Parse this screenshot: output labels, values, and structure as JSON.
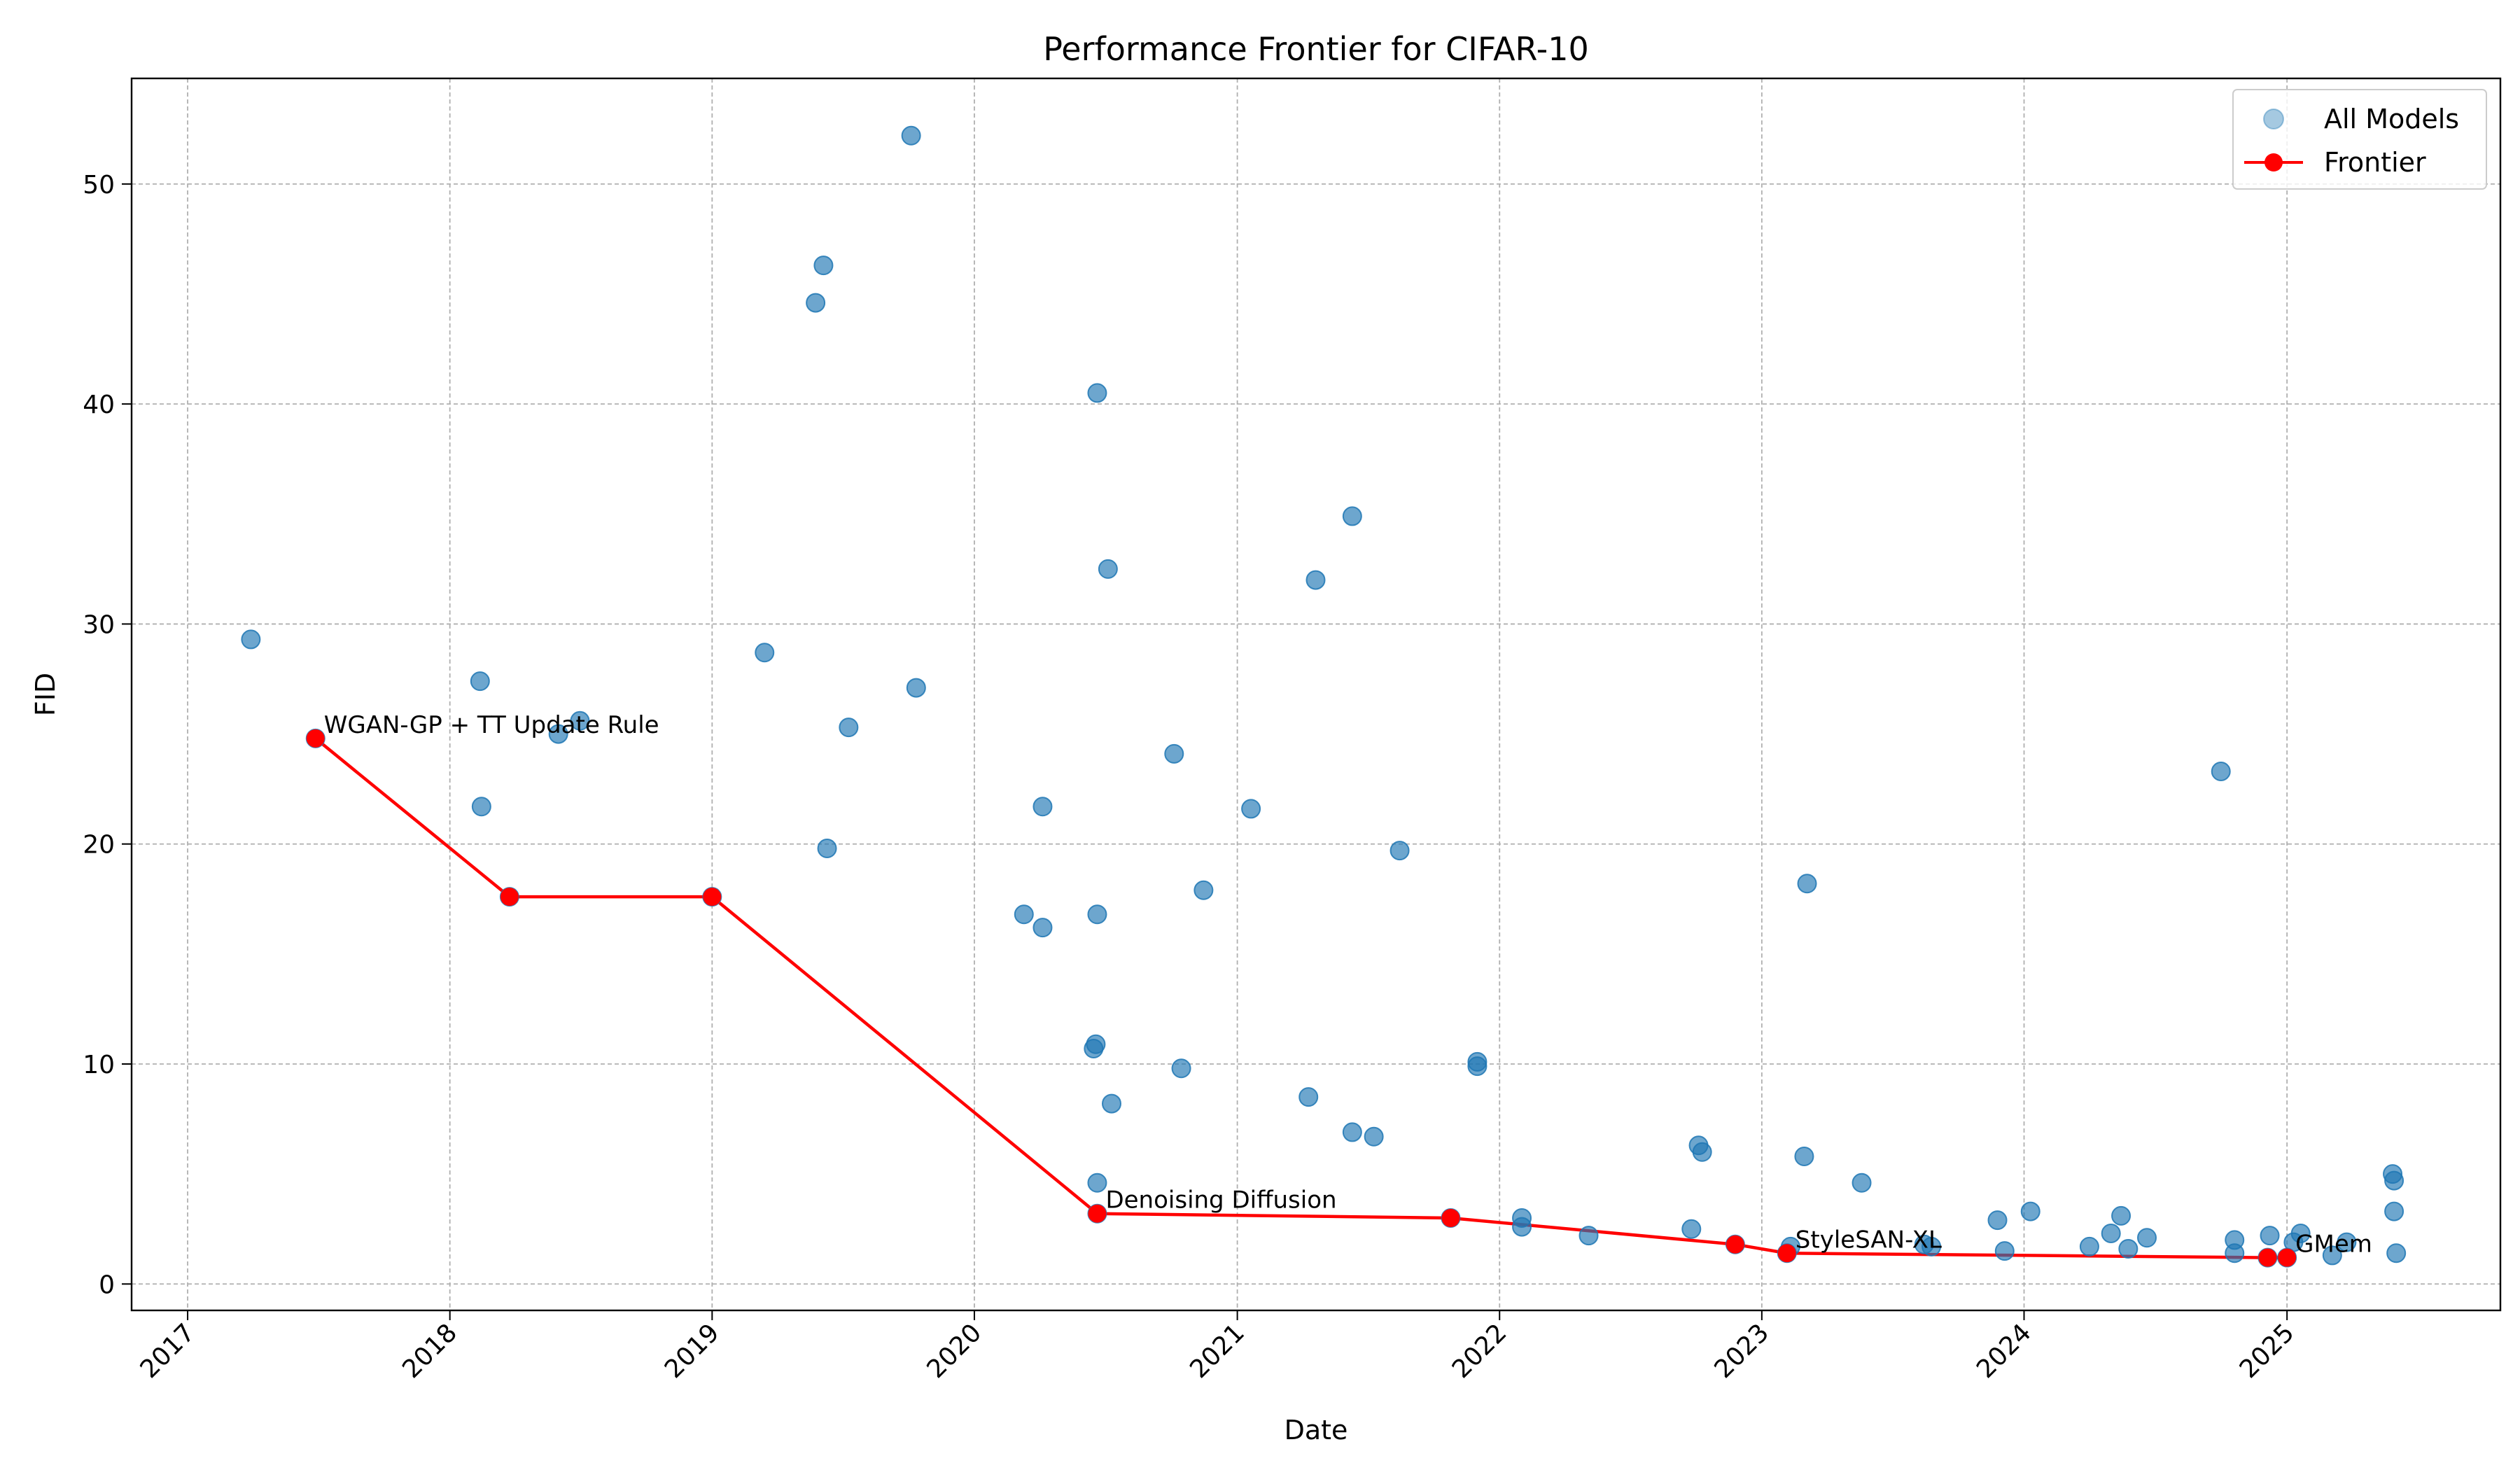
{
  "chart_data": {
    "type": "scatter",
    "title": "Performance Frontier for CIFAR-10",
    "xlabel": "Date",
    "ylabel": "FID",
    "xlim": [
      "2016-10-15",
      "2025-10-25"
    ],
    "ylim": [
      -1.2,
      54.8
    ],
    "x_tick_labels": [
      "2017",
      "2018",
      "2019",
      "2020",
      "2021",
      "2022",
      "2023",
      "2024",
      "2025"
    ],
    "y_ticks": [
      0,
      10,
      20,
      30,
      40,
      50
    ],
    "grid": true,
    "legend_position": "top-right",
    "colors": {
      "all_models": "#1f77b4",
      "frontier": "#ff0000"
    },
    "series": [
      {
        "name": "All Models",
        "kind": "scatter",
        "points": [
          [
            "2017-03-30",
            29.3
          ],
          [
            "2017-06-28",
            24.8
          ],
          [
            "2018-02-12",
            27.4
          ],
          [
            "2018-02-14",
            21.7
          ],
          [
            "2018-03-25",
            17.6
          ],
          [
            "2018-06-01",
            25.0
          ],
          [
            "2018-07-01",
            25.6
          ],
          [
            "2019-01-01",
            17.6
          ],
          [
            "2019-03-15",
            28.7
          ],
          [
            "2019-05-25",
            44.6
          ],
          [
            "2019-06-05",
            46.3
          ],
          [
            "2019-06-10",
            19.8
          ],
          [
            "2019-07-10",
            25.3
          ],
          [
            "2019-10-05",
            52.2
          ],
          [
            "2019-10-12",
            27.1
          ],
          [
            "2020-03-10",
            16.8
          ],
          [
            "2020-04-05",
            21.7
          ],
          [
            "2020-04-05",
            16.2
          ],
          [
            "2020-06-15",
            10.7
          ],
          [
            "2020-06-18",
            10.9
          ],
          [
            "2020-06-20",
            4.6
          ],
          [
            "2020-06-20",
            16.8
          ],
          [
            "2020-06-20",
            40.5
          ],
          [
            "2020-06-20",
            3.2
          ],
          [
            "2020-07-05",
            32.5
          ],
          [
            "2020-07-10",
            8.2
          ],
          [
            "2020-10-05",
            24.1
          ],
          [
            "2020-10-15",
            9.8
          ],
          [
            "2020-11-15",
            17.9
          ],
          [
            "2021-01-20",
            21.6
          ],
          [
            "2021-04-10",
            8.5
          ],
          [
            "2021-04-20",
            32.0
          ],
          [
            "2021-06-10",
            6.9
          ],
          [
            "2021-06-10",
            34.9
          ],
          [
            "2021-07-10",
            6.7
          ],
          [
            "2021-08-15",
            19.7
          ],
          [
            "2021-10-25",
            3.0
          ],
          [
            "2021-12-01",
            10.1
          ],
          [
            "2021-12-01",
            9.9
          ],
          [
            "2022-02-01",
            3.0
          ],
          [
            "2022-02-01",
            2.6
          ],
          [
            "2022-05-05",
            2.2
          ],
          [
            "2022-09-25",
            2.5
          ],
          [
            "2022-10-05",
            6.3
          ],
          [
            "2022-10-10",
            6.0
          ],
          [
            "2022-11-25",
            1.8
          ],
          [
            "2023-02-05",
            1.4
          ],
          [
            "2023-02-10",
            1.7
          ],
          [
            "2023-03-01",
            5.8
          ],
          [
            "2023-03-05",
            18.2
          ],
          [
            "2023-05-20",
            4.6
          ],
          [
            "2023-08-15",
            1.8
          ],
          [
            "2023-08-25",
            1.7
          ],
          [
            "2023-11-25",
            2.9
          ],
          [
            "2023-12-05",
            1.5
          ],
          [
            "2024-01-10",
            3.3
          ],
          [
            "2024-04-01",
            1.7
          ],
          [
            "2024-05-01",
            2.3
          ],
          [
            "2024-05-15",
            3.1
          ],
          [
            "2024-05-25",
            1.6
          ],
          [
            "2024-06-20",
            2.1
          ],
          [
            "2024-10-01",
            23.3
          ],
          [
            "2024-10-20",
            2.0
          ],
          [
            "2024-10-20",
            1.4
          ],
          [
            "2024-12-08",
            2.2
          ],
          [
            "2024-12-05",
            1.2
          ],
          [
            "2025-01-01",
            1.2
          ],
          [
            "2025-01-20",
            2.3
          ],
          [
            "2025-01-10",
            1.9
          ],
          [
            "2025-03-05",
            1.3
          ],
          [
            "2025-03-25",
            1.9
          ],
          [
            "2025-05-28",
            5.0
          ],
          [
            "2025-05-30",
            4.7
          ],
          [
            "2025-05-30",
            3.3
          ],
          [
            "2025-06-02",
            1.4
          ]
        ]
      },
      {
        "name": "Frontier",
        "kind": "line",
        "points": [
          [
            "2017-06-28",
            24.8
          ],
          [
            "2018-03-25",
            17.6
          ],
          [
            "2019-01-01",
            17.6
          ],
          [
            "2020-06-20",
            3.2
          ],
          [
            "2021-10-25",
            3.0
          ],
          [
            "2022-11-25",
            1.8
          ],
          [
            "2023-02-05",
            1.4
          ],
          [
            "2024-12-05",
            1.2
          ],
          [
            "2025-01-01",
            1.2
          ]
        ]
      }
    ],
    "annotations": [
      {
        "text": "WGAN-GP + TT Update Rule",
        "x": "2017-06-28",
        "y": 24.8
      },
      {
        "text": "Denoising Diffusion",
        "x": "2020-06-20",
        "y": 3.2
      },
      {
        "text": "StyleSAN-XL",
        "x": "2023-02-05",
        "y": 1.4
      },
      {
        "text": "GMem",
        "x": "2025-01-01",
        "y": 1.2
      }
    ]
  }
}
